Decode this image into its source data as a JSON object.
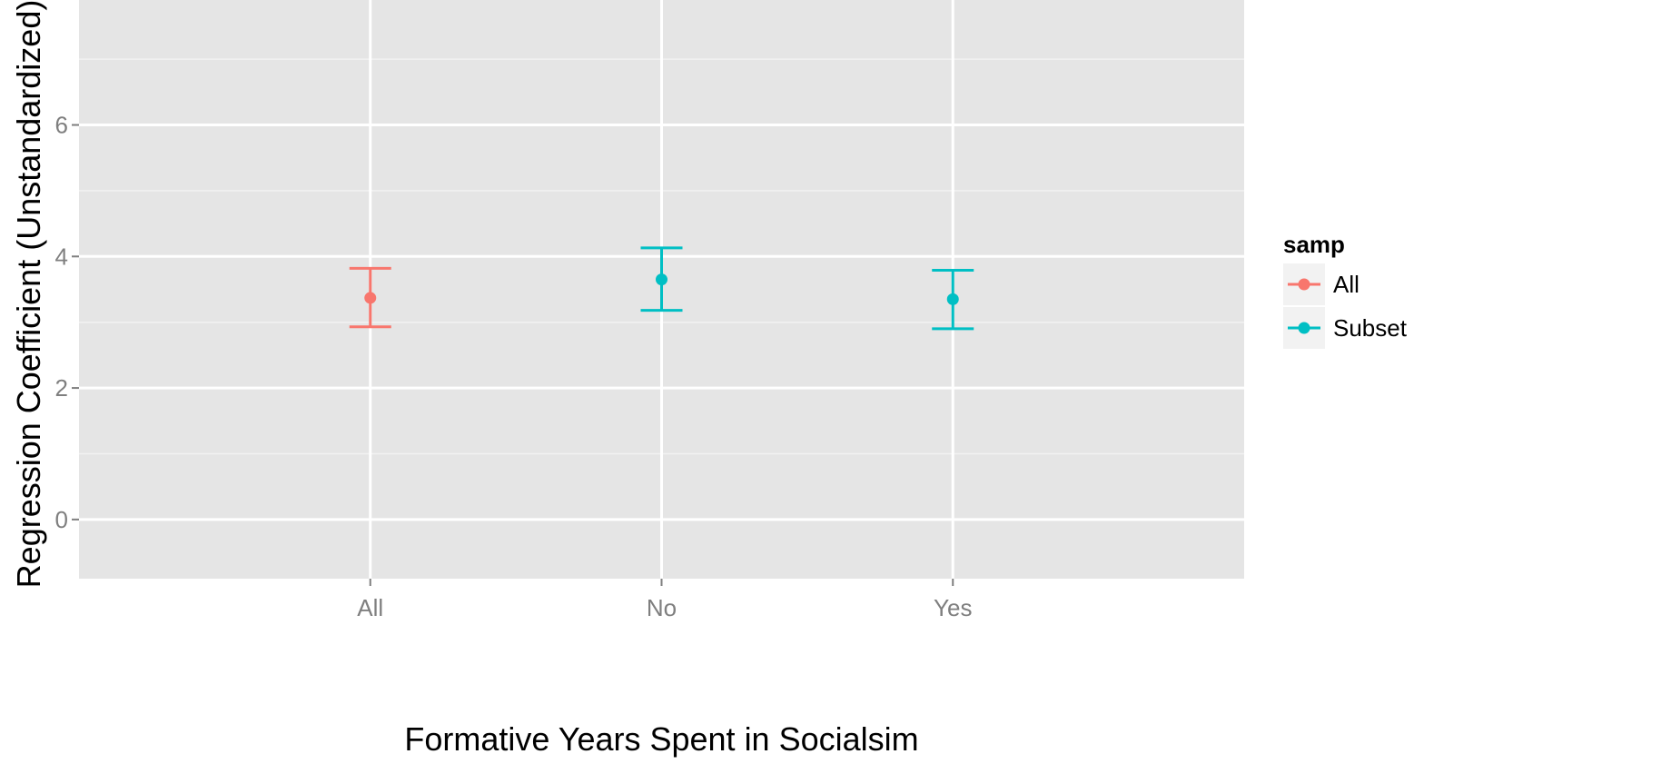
{
  "chart_data": {
    "type": "scatter",
    "title": "",
    "xlabel": "Formative Years Spent in Socialsim",
    "ylabel": "Regression Coefficient (Unstandardized)",
    "categories": [
      "All",
      "No",
      "Yes"
    ],
    "ylim": [
      -0.9,
      7.9
    ],
    "yticks": [
      0,
      2,
      4,
      6
    ],
    "grid": true,
    "legend": {
      "title": "samp",
      "position": "right",
      "entries": [
        {
          "label": "All",
          "color": "#F8766D"
        },
        {
          "label": "Subset",
          "color": "#00BFC4"
        }
      ]
    },
    "points": [
      {
        "x": "All",
        "group": "All",
        "y": 3.37,
        "ymin": 2.93,
        "ymax": 3.82
      },
      {
        "x": "No",
        "group": "Subset",
        "y": 3.65,
        "ymin": 3.18,
        "ymax": 4.13
      },
      {
        "x": "Yes",
        "group": "Subset",
        "y": 3.35,
        "ymin": 2.9,
        "ymax": 3.79
      }
    ]
  },
  "colors": {
    "panel": "#E5E5E5",
    "grid_major": "#FFFFFF",
    "grid_minor": "#F2F2F2",
    "tick": "#7F7F7F"
  }
}
